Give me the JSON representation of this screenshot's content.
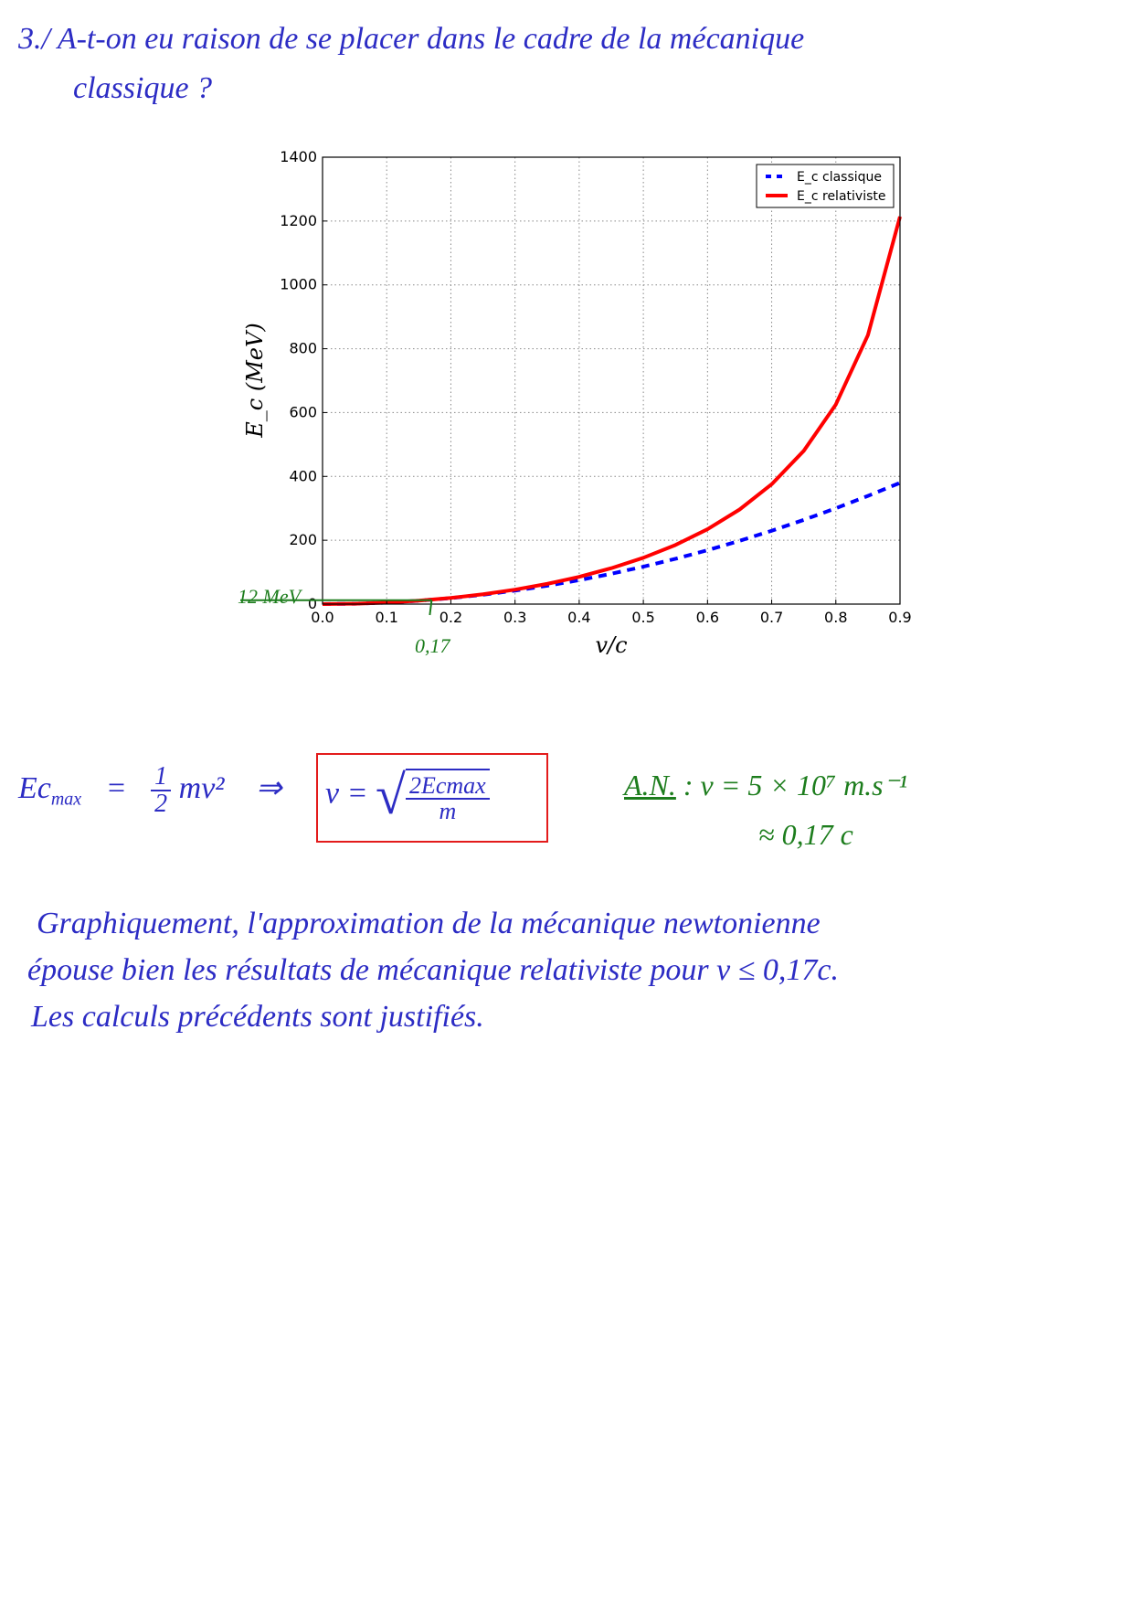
{
  "question": {
    "line1": "3./ A-t-on eu raison de se placer dans le cadre de la mécanique",
    "line2": "classique ?"
  },
  "equations": {
    "ec_max_lhs": "Ec",
    "ec_max_sub": "max",
    "equals": "=",
    "half_num": "1",
    "half_den": "2",
    "mv2": "mv²",
    "implies": "⇒",
    "v_boxed_lhs": "v =",
    "sqrt_num": "2Ecmax",
    "sqrt_den": "m",
    "an_label": "A.N.",
    "an_value": ": v = 5 × 10⁷ m.s⁻¹",
    "an_approx": "≈ 0,17 c"
  },
  "annotations": {
    "energy_mark": "12 MeV",
    "speed_mark": "0,17"
  },
  "conclusion": {
    "line1": "Graphiquement, l'approximation de la mécanique newtonienne",
    "line2": "épouse bien les résultats de mécanique relativiste pour v ≤ 0,17c.",
    "line3": "Les calculs précédents sont justifiés."
  },
  "colors": {
    "ink_blue": "#2c2cc4",
    "ink_green": "#1d7d1d",
    "box_red": "#e31b1b",
    "series_classique": "#0000ff",
    "series_relativiste": "#ff0000"
  },
  "chart_data": {
    "type": "line",
    "title": "",
    "xlabel": "v/c",
    "ylabel": "E_c (MeV)",
    "xlim": [
      0.0,
      0.9
    ],
    "ylim": [
      0,
      1400
    ],
    "xticks": [
      "0.0",
      "0.1",
      "0.2",
      "0.3",
      "0.4",
      "0.5",
      "0.6",
      "0.7",
      "0.8",
      "0.9"
    ],
    "yticks": [
      "0",
      "200",
      "400",
      "600",
      "800",
      "1000",
      "1200",
      "1400"
    ],
    "grid": true,
    "legend_position": "top-right",
    "x": [
      0,
      0.05,
      0.1,
      0.15,
      0.2,
      0.25,
      0.3,
      0.35,
      0.4,
      0.45,
      0.5,
      0.55,
      0.6,
      0.65,
      0.7,
      0.75,
      0.8,
      0.85,
      0.9
    ],
    "series": [
      {
        "name": "E_c classique",
        "style": "dashed",
        "color": "#0000ff",
        "values": [
          0,
          1.2,
          4.7,
          10.6,
          18.8,
          29.3,
          42.2,
          57.5,
          75.0,
          95.0,
          117.3,
          141.9,
          168.8,
          198.2,
          229.8,
          263.8,
          300.2,
          338.9,
          379.9
        ]
      },
      {
        "name": "E_c relativiste",
        "style": "solid",
        "color": "#ff0000",
        "values": [
          0,
          1.2,
          4.7,
          10.7,
          19.3,
          30.8,
          45.3,
          63.3,
          85.4,
          112.4,
          145.1,
          185.1,
          234.5,
          296.3,
          375.5,
          480.1,
          625.3,
          842.6,
          1213.9
        ]
      }
    ],
    "annotation_lines": {
      "energy_MeV": 12,
      "speed_v_over_c": 0.17
    }
  }
}
